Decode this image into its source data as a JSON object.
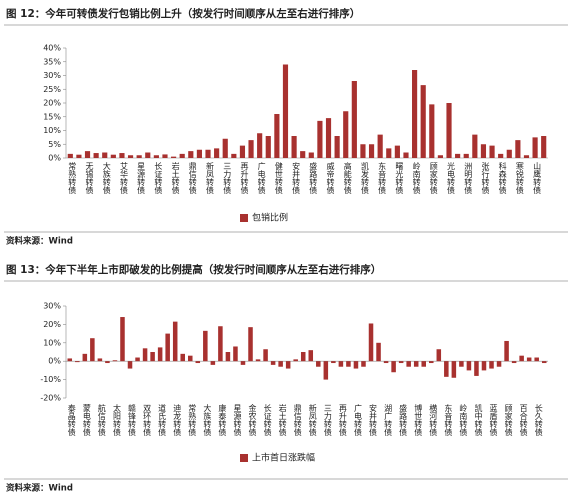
{
  "chart_data": [
    {
      "type": "bar",
      "title": "图 12：今年可转债发行包销比例上升（按发行时间顺序从左至右进行排序）",
      "source": "资料来源：Wind",
      "categories": [
        "常熟转债",
        null,
        "无锡转债",
        null,
        "大族转债",
        null,
        "艾华转债",
        null,
        "星源转债",
        null,
        "长证转债",
        null,
        "岩土转债",
        null,
        "鼎信转债",
        null,
        "新凤转债",
        null,
        "三力转债",
        null,
        "再升转债",
        null,
        "广电转债",
        null,
        "健世转债",
        null,
        "安井转债",
        null,
        "盛路转债",
        null,
        "威帝转债",
        null,
        "高能转债",
        null,
        "凯发转债",
        null,
        "东音转债",
        null,
        "曙光转债",
        null,
        "岭南转债",
        null,
        "顾家转债",
        null,
        "光电转债",
        null,
        "洲明转债",
        null,
        "张行转债",
        null,
        "科森转债",
        null,
        "寒锐转债",
        null,
        "山鹰转债",
        null
      ],
      "series": [
        {
          "name": "包销比例",
          "color": "#a8312f",
          "values": [
            1.5,
            1.2,
            2.5,
            1.8,
            2,
            1.2,
            1.8,
            1,
            1,
            2,
            1,
            1.3,
            0.5,
            1.5,
            2.5,
            3,
            3,
            3.5,
            7,
            1.5,
            4.5,
            6.5,
            9,
            8,
            16,
            34,
            8,
            2.5,
            2,
            13.5,
            14.5,
            8,
            17,
            28,
            5,
            5,
            8.5,
            3.5,
            4.5,
            2,
            32,
            26.5,
            19.5,
            1,
            20,
            1.5,
            1.5,
            8.5,
            5,
            4.5,
            1.5,
            3,
            6.5,
            1,
            7.5,
            8
          ]
        }
      ],
      "ylim": [
        0,
        40
      ],
      "yticks": [
        {
          "value": 0,
          "label": "0%"
        },
        {
          "value": 5,
          "label": "5%"
        },
        {
          "value": 10,
          "label": "10%"
        },
        {
          "value": 15,
          "label": "15%"
        },
        {
          "value": 20,
          "label": "20%"
        },
        {
          "value": 25,
          "label": "25%"
        },
        {
          "value": 30,
          "label": "30%"
        },
        {
          "value": 35,
          "label": "35%"
        },
        {
          "value": 40,
          "label": "40%"
        }
      ],
      "legend": "bottom"
    },
    {
      "type": "bar",
      "title": "图 13：今年下半年上市即破发的比例提高（按发行时间顺序从左至右进行排序）",
      "source": "资料来源：Wind",
      "categories": [
        "泰晶转债",
        null,
        "蒙电转债",
        null,
        "航信转债",
        null,
        "太阳转债",
        null,
        "赣锋转债",
        null,
        "双环转债",
        null,
        "道氏转债",
        null,
        "迪龙转债",
        null,
        "常熟转债",
        null,
        "大族转债",
        null,
        "康泰转债",
        null,
        "星源转债",
        null,
        "金农转债",
        null,
        "长证转债",
        null,
        "岩土转债",
        null,
        "鼎信转债",
        null,
        "新凤转债",
        null,
        "三力转债",
        null,
        "再升转债",
        null,
        "广电转债",
        null,
        "安井转债",
        null,
        "湖广转债",
        null,
        "盛路转债",
        null,
        "博世转债",
        null,
        "横河转债",
        null,
        "东音转债",
        null,
        "岭南转债",
        null,
        "凯中转债",
        null,
        "蓝盾转债",
        null,
        "顾家转债",
        null,
        "百合转债",
        null,
        "长久转债",
        null
      ],
      "series": [
        {
          "name": "上市首日涨跌幅",
          "color": "#a8312f",
          "values": [
            1.5,
            -0.5,
            4,
            12.5,
            1.5,
            -1,
            0.5,
            24,
            -4,
            2,
            7,
            5,
            7.5,
            15,
            21.5,
            4,
            3,
            -1,
            16.5,
            -2,
            19,
            5,
            8,
            -2,
            18.5,
            1,
            6.5,
            -2,
            -3,
            -4,
            1,
            5,
            6,
            -3,
            -10,
            -1,
            -3,
            -3,
            -4,
            -3,
            20.5,
            10,
            -1,
            -6,
            -1,
            -3,
            -3,
            -3,
            -1,
            6.5,
            -8.5,
            -9,
            -3,
            -5,
            -8,
            -5,
            -4,
            -3,
            11,
            -1,
            3,
            2,
            2,
            -1
          ]
        }
      ],
      "ylim": [
        -20,
        30
      ],
      "yticks": [
        {
          "value": -20,
          "label": "-20%"
        },
        {
          "value": -10,
          "label": "-10%"
        },
        {
          "value": 0,
          "label": "0%"
        },
        {
          "value": 10,
          "label": "10%"
        },
        {
          "value": 20,
          "label": "20%"
        },
        {
          "value": 30,
          "label": "30%"
        }
      ],
      "legend": "bottom"
    }
  ]
}
